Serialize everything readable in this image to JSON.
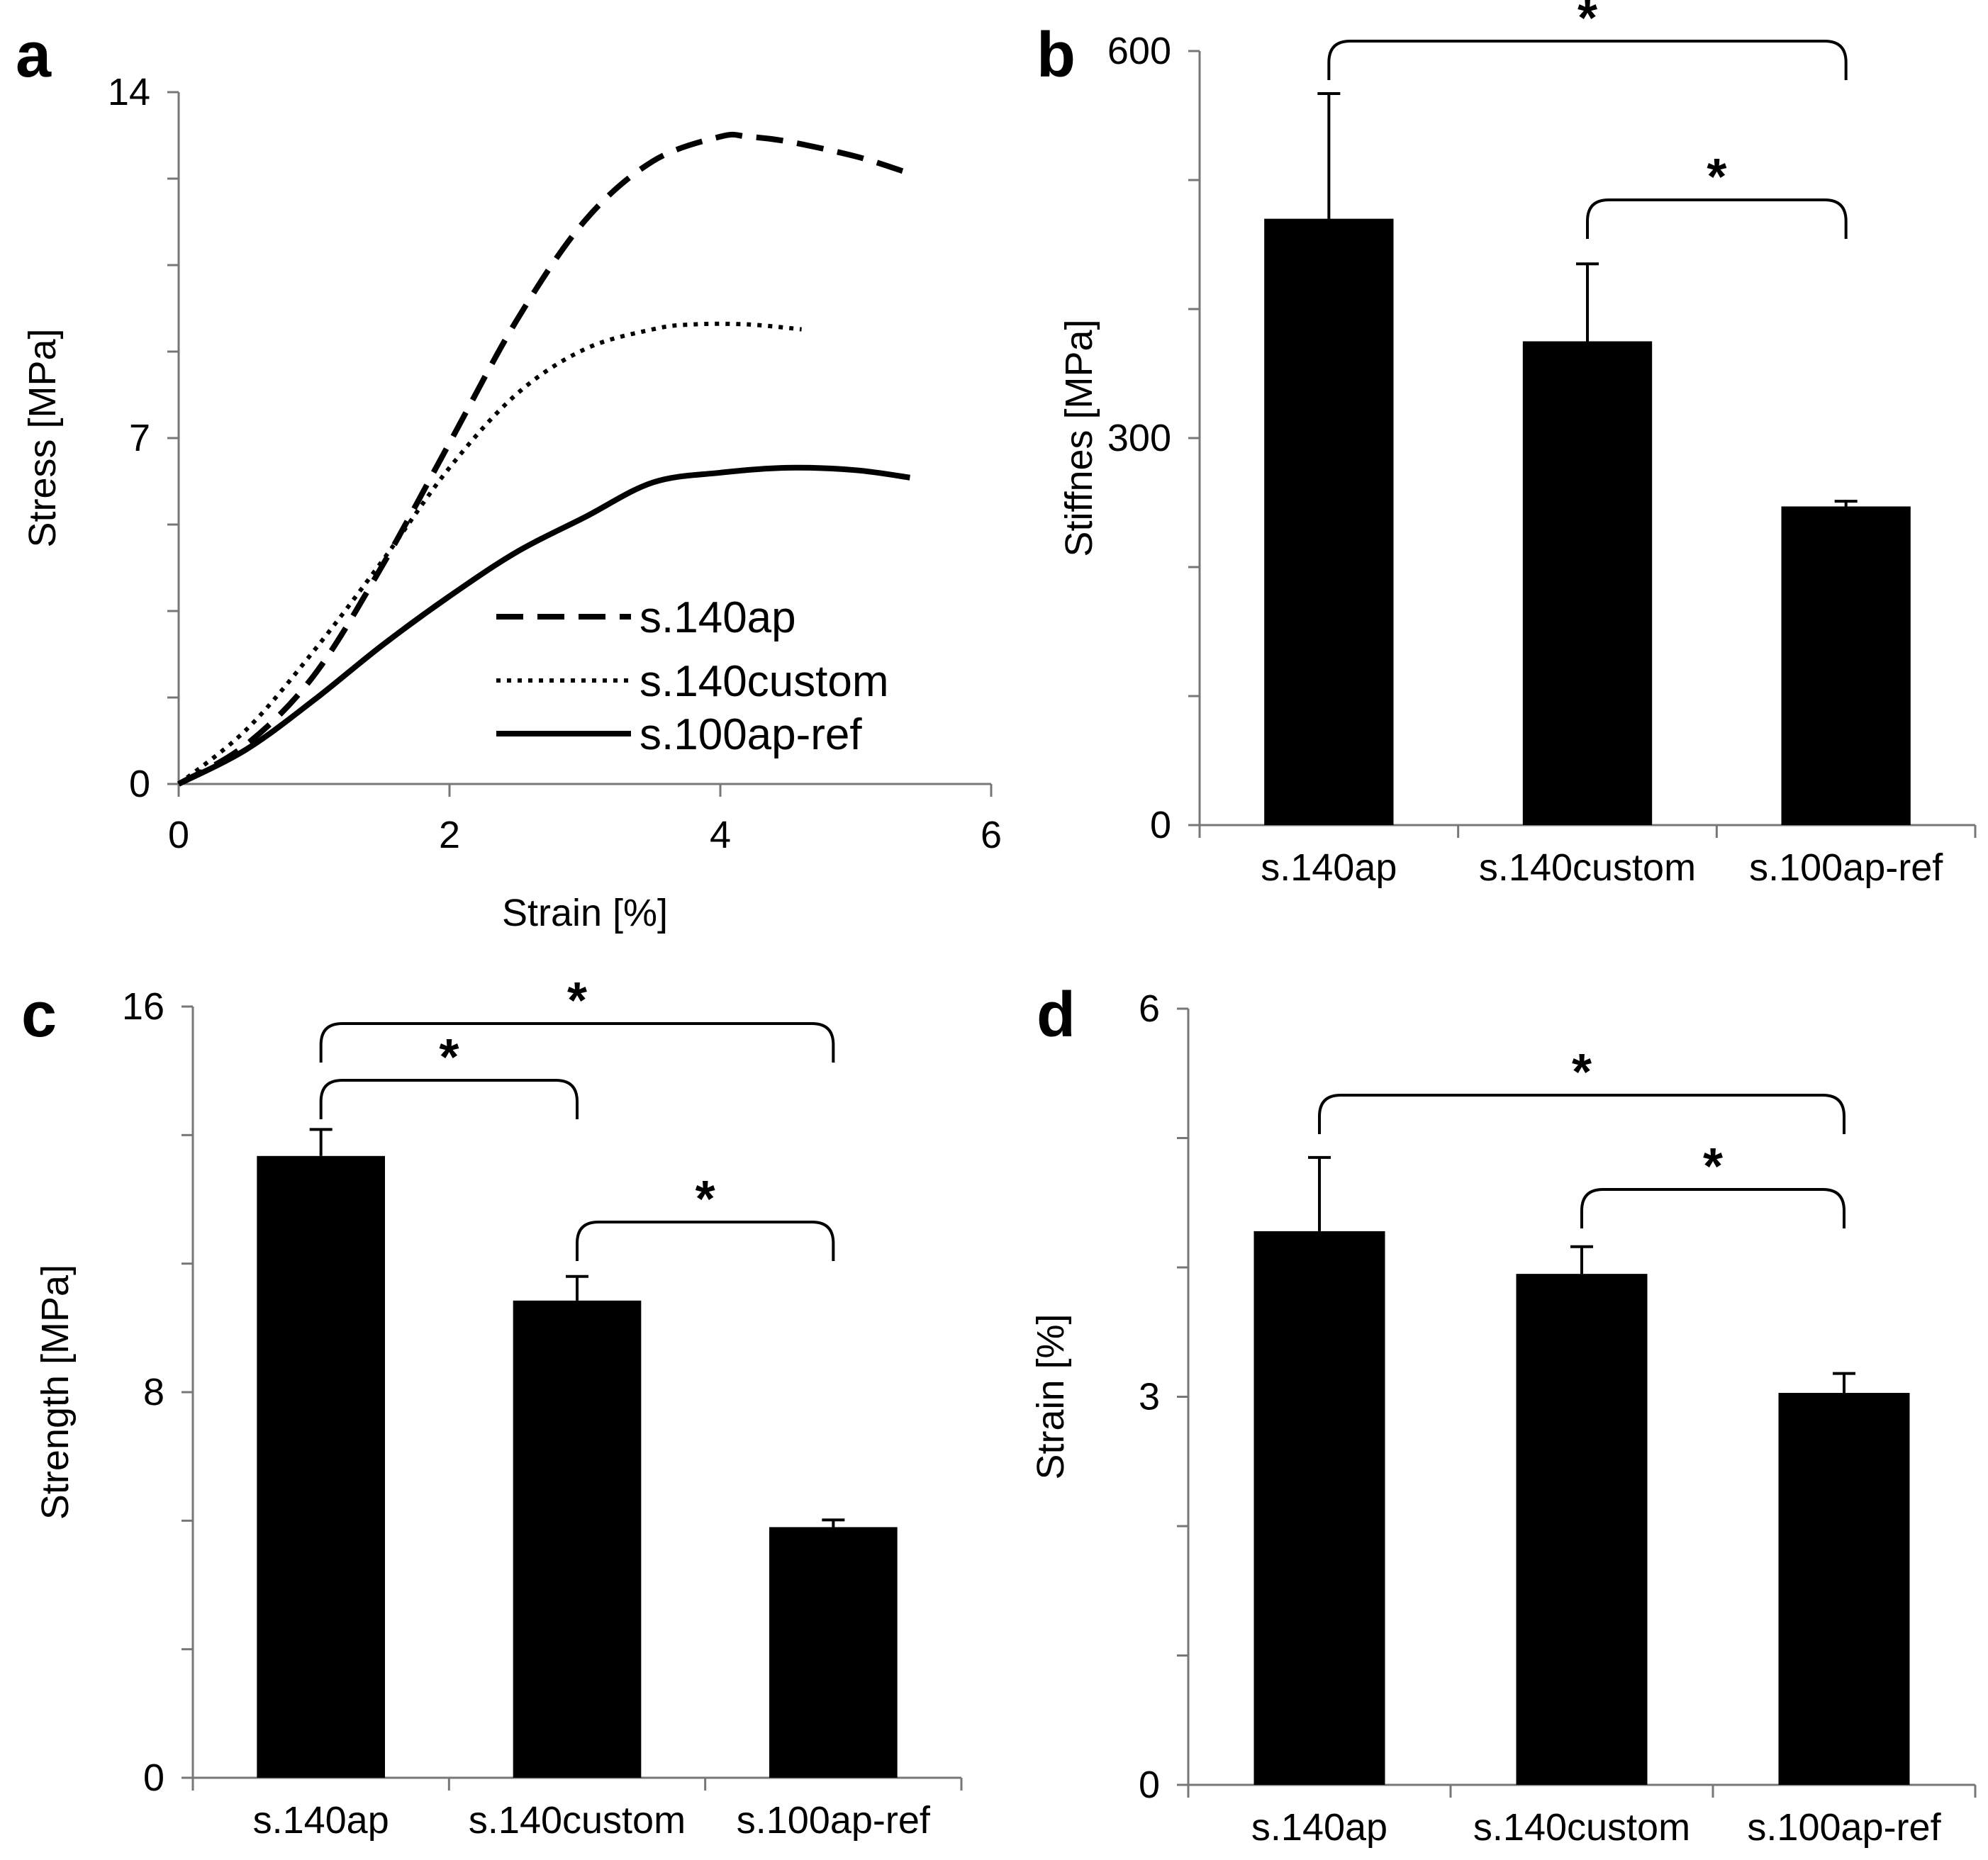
{
  "figure": {
    "panels": [
      "a",
      "b",
      "c",
      "d"
    ]
  },
  "chart_data": [
    {
      "panel": "a",
      "type": "line",
      "xlabel": "Strain [%]",
      "ylabel": "Stress [MPa]",
      "xlim": [
        0,
        6
      ],
      "ylim": [
        0,
        14
      ],
      "xticks": [
        "0",
        "2",
        "4",
        "6"
      ],
      "yticks": [
        "0",
        "7",
        "14"
      ],
      "grid": false,
      "legend_position": "lower-right",
      "series": [
        {
          "name": "s.140ap",
          "style": "dashed",
          "x": [
            0,
            0.5,
            1.0,
            1.5,
            2.0,
            2.5,
            3.0,
            3.5,
            4.0,
            4.2,
            4.5,
            5.0,
            5.35
          ],
          "y": [
            0,
            0.8,
            2.2,
            4.4,
            6.9,
            9.4,
            11.4,
            12.6,
            13.1,
            13.1,
            13.0,
            12.7,
            12.4
          ]
        },
        {
          "name": "s.140custom",
          "style": "dotted",
          "x": [
            0,
            0.5,
            1.0,
            1.5,
            2.0,
            2.5,
            3.0,
            3.5,
            3.8,
            4.2,
            4.6
          ],
          "y": [
            0,
            1.1,
            2.7,
            4.5,
            6.4,
            7.9,
            8.8,
            9.2,
            9.3,
            9.3,
            9.2
          ]
        },
        {
          "name": "s.100ap-ref",
          "style": "solid",
          "x": [
            0,
            0.5,
            1.0,
            1.5,
            2.0,
            2.5,
            3.0,
            3.5,
            4.0,
            4.5,
            5.0,
            5.4
          ],
          "y": [
            0,
            0.7,
            1.7,
            2.8,
            3.8,
            4.7,
            5.4,
            6.1,
            6.3,
            6.4,
            6.35,
            6.2
          ]
        }
      ]
    },
    {
      "panel": "b",
      "type": "bar",
      "ylabel": "Stiffnes [MPa]",
      "ylim": [
        0,
        600
      ],
      "yticks": [
        "0",
        "300",
        "600"
      ],
      "categories": [
        "s.140ap",
        "s.140custom",
        "s.100ap-ref"
      ],
      "values": [
        470,
        375,
        247
      ],
      "errors": [
        97,
        60,
        4
      ],
      "significance": [
        {
          "from": 0,
          "to": 2,
          "label": "*"
        },
        {
          "from": 1,
          "to": 2,
          "label": "*"
        }
      ]
    },
    {
      "panel": "c",
      "type": "bar",
      "ylabel": "Strength [MPa]",
      "ylim": [
        0,
        16
      ],
      "yticks": [
        "0",
        "8",
        "16"
      ],
      "categories": [
        "s.140ap",
        "s.140custom",
        "s.100ap-ref"
      ],
      "values": [
        12.9,
        9.9,
        5.2
      ],
      "errors": [
        0.55,
        0.5,
        0.15
      ],
      "significance": [
        {
          "from": 0,
          "to": 1,
          "label": "*"
        },
        {
          "from": 0,
          "to": 2,
          "label": "*"
        },
        {
          "from": 1,
          "to": 2,
          "label": "*"
        }
      ]
    },
    {
      "panel": "d",
      "type": "bar",
      "ylabel": "Strain [%]",
      "ylim": [
        0,
        6
      ],
      "yticks": [
        "0",
        "3",
        "6"
      ],
      "categories": [
        "s.140ap",
        "s.140custom",
        "s.100ap-ref"
      ],
      "values": [
        4.28,
        3.95,
        3.03
      ],
      "errors": [
        0.57,
        0.21,
        0.15
      ],
      "significance": [
        {
          "from": 0,
          "to": 2,
          "label": "*"
        },
        {
          "from": 1,
          "to": 2,
          "label": "*"
        }
      ]
    }
  ]
}
